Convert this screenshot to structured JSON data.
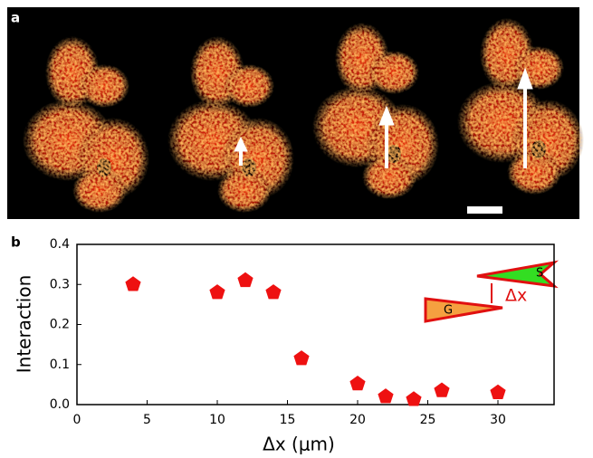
{
  "panel_a": {
    "label": "a"
  },
  "chart_data": {
    "type": "scatter",
    "panel_label": "b",
    "x_label": "Δx (μm)",
    "y_label": "Interaction",
    "x": [
      4,
      10,
      12,
      14,
      16,
      20,
      22,
      24,
      26,
      30
    ],
    "values": [
      0.3,
      0.28,
      0.31,
      0.28,
      0.115,
      0.052,
      0.02,
      0.013,
      0.035,
      0.03
    ],
    "color": "#ee1111",
    "xlim": [
      0,
      34
    ],
    "ylim": [
      0,
      0.4
    ],
    "xticks": [
      0,
      5,
      10,
      15,
      20,
      25,
      30
    ],
    "yticks": [
      {
        "value": 0,
        "label": "0.0"
      },
      0.1,
      0.2,
      0.3,
      0.4
    ],
    "inset": {
      "g_label": "G",
      "s_label": "S",
      "gap_label": "Δx"
    }
  }
}
